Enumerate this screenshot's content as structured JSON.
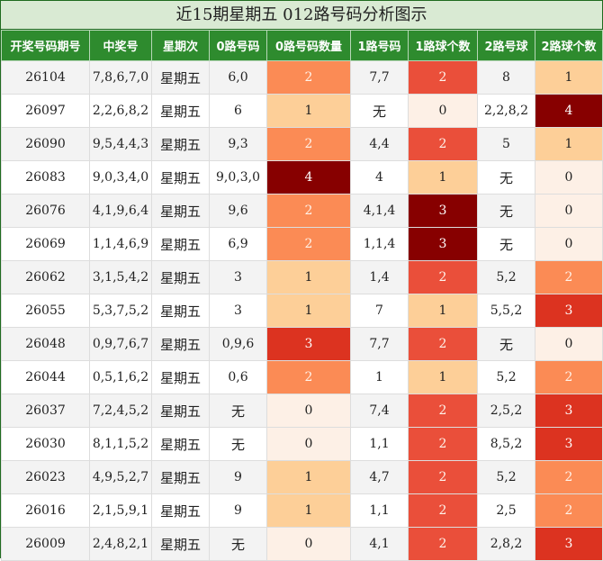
{
  "title": "近15期星期五 012路号码分析图示",
  "headers": [
    "开奖号码期号",
    "中奖号",
    "星期次",
    "0路号码",
    "0路号码数量",
    "1路号码",
    "1路球个数",
    "2路号球",
    "2路球个数"
  ],
  "rows": [
    {
      "issue": "26104",
      "numbers": "7,8,6,7,0",
      "weekday": "星期五",
      "r0": "6,0",
      "r0n": "2",
      "r1": "7,7",
      "r1n": "2",
      "r2": "8",
      "r2n": "1"
    },
    {
      "issue": "26097",
      "numbers": "2,2,6,8,2",
      "weekday": "星期五",
      "r0": "6",
      "r0n": "1",
      "r1": "无",
      "r1n": "0",
      "r2": "2,2,8,2",
      "r2n": "4"
    },
    {
      "issue": "26090",
      "numbers": "9,5,4,4,3",
      "weekday": "星期五",
      "r0": "9,3",
      "r0n": "2",
      "r1": "4,4",
      "r1n": "2",
      "r2": "5",
      "r2n": "1"
    },
    {
      "issue": "26083",
      "numbers": "9,0,3,4,0",
      "weekday": "星期五",
      "r0": "9,0,3,0",
      "r0n": "4",
      "r1": "4",
      "r1n": "1",
      "r2": "无",
      "r2n": "0"
    },
    {
      "issue": "26076",
      "numbers": "4,1,9,6,4",
      "weekday": "星期五",
      "r0": "9,6",
      "r0n": "2",
      "r1": "4,1,4",
      "r1n": "3",
      "r2": "无",
      "r2n": "0"
    },
    {
      "issue": "26069",
      "numbers": "1,1,4,6,9",
      "weekday": "星期五",
      "r0": "6,9",
      "r0n": "2",
      "r1": "1,1,4",
      "r1n": "3",
      "r2": "无",
      "r2n": "0"
    },
    {
      "issue": "26062",
      "numbers": "3,1,5,4,2",
      "weekday": "星期五",
      "r0": "3",
      "r0n": "1",
      "r1": "1,4",
      "r1n": "2",
      "r2": "5,2",
      "r2n": "2"
    },
    {
      "issue": "26055",
      "numbers": "5,3,7,5,2",
      "weekday": "星期五",
      "r0": "3",
      "r0n": "1",
      "r1": "7",
      "r1n": "1",
      "r2": "5,5,2",
      "r2n": "3"
    },
    {
      "issue": "26048",
      "numbers": "0,9,7,6,7",
      "weekday": "星期五",
      "r0": "0,9,6",
      "r0n": "3",
      "r1": "7,7",
      "r1n": "2",
      "r2": "无",
      "r2n": "0"
    },
    {
      "issue": "26044",
      "numbers": "0,5,1,6,2",
      "weekday": "星期五",
      "r0": "0,6",
      "r0n": "2",
      "r1": "1",
      "r1n": "1",
      "r2": "5,2",
      "r2n": "2"
    },
    {
      "issue": "26037",
      "numbers": "7,2,4,5,2",
      "weekday": "星期五",
      "r0": "无",
      "r0n": "0",
      "r1": "7,4",
      "r1n": "2",
      "r2": "2,5,2",
      "r2n": "3"
    },
    {
      "issue": "26030",
      "numbers": "8,1,1,5,2",
      "weekday": "星期五",
      "r0": "无",
      "r0n": "0",
      "r1": "1,1",
      "r1n": "2",
      "r2": "8,5,2",
      "r2n": "3"
    },
    {
      "issue": "26023",
      "numbers": "4,9,5,2,7",
      "weekday": "星期五",
      "r0": "9",
      "r0n": "1",
      "r1": "4,7",
      "r1n": "2",
      "r2": "5,2",
      "r2n": "2"
    },
    {
      "issue": "26016",
      "numbers": "2,1,5,9,1",
      "weekday": "星期五",
      "r0": "9",
      "r0n": "1",
      "r1": "1,1",
      "r1n": "2",
      "r2": "2,5",
      "r2n": "2"
    },
    {
      "issue": "26009",
      "numbers": "2,4,8,2,1",
      "weekday": "星期五",
      "r0": "无",
      "r0n": "0",
      "r1": "4,1",
      "r1n": "2",
      "r2": "2,8,2",
      "r2n": "3"
    }
  ],
  "heat_colors": {
    "r0n": {
      "0": "#fdf0e6",
      "1": "#fdcf98",
      "2": "#fb8b55",
      "3": "#dc3320",
      "4": "#870000"
    },
    "r1n": {
      "0": "#fdf0e6",
      "1": "#fdcf98",
      "2": "#ea4f3a",
      "3": "#870000"
    },
    "r2n": {
      "0": "#fdf0e6",
      "1": "#fdcf98",
      "2": "#fb8b55",
      "3": "#dc3320",
      "4": "#870000"
    }
  }
}
